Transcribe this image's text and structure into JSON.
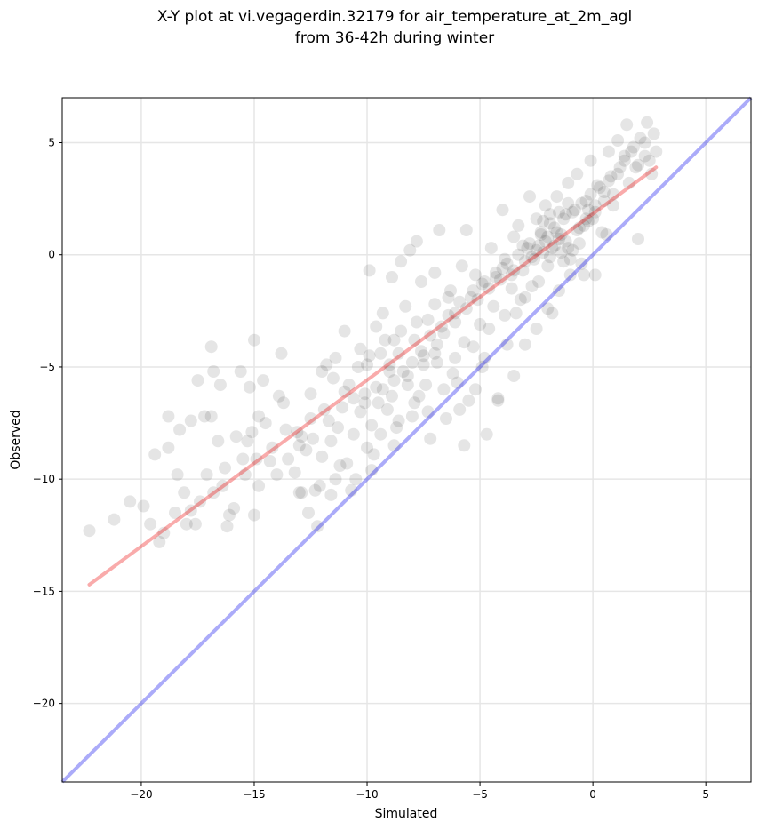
{
  "chart_data": {
    "type": "scatter",
    "title": "X-Y plot at vi.vegagerdin.32179 for air_temperature_at_2m_agl",
    "subtitle": "from 36-42h during winter",
    "xlabel": "Simulated",
    "ylabel": "Observed",
    "xlim": [
      -23.5,
      7.0
    ],
    "ylim": [
      -23.5,
      7.0
    ],
    "xticks": [
      -20,
      -15,
      -10,
      -5,
      0,
      5
    ],
    "yticks": [
      -20,
      -15,
      -10,
      -5,
      0,
      5
    ],
    "tick_labels": [
      "−20",
      "−15",
      "−10",
      "−5",
      "0",
      "5"
    ],
    "grid": true,
    "point_color": "#000000",
    "point_alpha": 0.1,
    "identity_line": {
      "color": "#0000ee",
      "alpha": 0.33,
      "from": [
        -23.5,
        -23.5
      ],
      "to": [
        7.0,
        7.0
      ]
    },
    "fit_line": {
      "color": "#ee0000",
      "alpha": 0.33,
      "from": [
        -22.3,
        -14.7
      ],
      "to": [
        2.8,
        3.9
      ]
    },
    "points": [
      [
        -22.3,
        -12.3
      ],
      [
        -21.2,
        -11.8
      ],
      [
        -20.5,
        -11.0
      ],
      [
        -19.9,
        -11.2
      ],
      [
        -19.6,
        -12.0
      ],
      [
        -19.2,
        -12.8
      ],
      [
        -19.0,
        -12.4
      ],
      [
        -18.8,
        -8.6
      ],
      [
        -19.4,
        -8.9
      ],
      [
        -18.8,
        -7.2
      ],
      [
        -18.3,
        -7.8
      ],
      [
        -18.4,
        -9.8
      ],
      [
        -18.1,
        -10.6
      ],
      [
        -17.8,
        -11.4
      ],
      [
        -18.0,
        -12.0
      ],
      [
        -17.6,
        -12.0
      ],
      [
        -17.8,
        -7.4
      ],
      [
        -17.5,
        -5.6
      ],
      [
        -17.2,
        -7.2
      ],
      [
        -16.9,
        -7.2
      ],
      [
        -17.1,
        -9.8
      ],
      [
        -16.8,
        -10.6
      ],
      [
        -16.9,
        -4.1
      ],
      [
        -16.8,
        -5.2
      ],
      [
        -16.5,
        -5.8
      ],
      [
        -16.6,
        -8.3
      ],
      [
        -16.3,
        -9.5
      ],
      [
        -16.1,
        -11.6
      ],
      [
        -16.2,
        -12.1
      ],
      [
        -15.9,
        -11.3
      ],
      [
        -15.8,
        -8.1
      ],
      [
        -15.6,
        -5.2
      ],
      [
        -15.5,
        -9.1
      ],
      [
        -15.3,
        -8.3
      ],
      [
        -15.2,
        -5.9
      ],
      [
        -15.0,
        -3.8
      ],
      [
        -15.1,
        -7.9
      ],
      [
        -14.9,
        -9.1
      ],
      [
        -14.8,
        -10.3
      ],
      [
        -15.0,
        -11.6
      ],
      [
        -14.8,
        -7.2
      ],
      [
        -14.6,
        -5.6
      ],
      [
        -14.5,
        -7.5
      ],
      [
        -14.2,
        -8.6
      ],
      [
        -14.0,
        -9.8
      ],
      [
        -13.9,
        -6.3
      ],
      [
        -13.8,
        -4.4
      ],
      [
        -13.7,
        -6.6
      ],
      [
        -13.5,
        -9.1
      ],
      [
        -13.2,
        -9.7
      ],
      [
        -13.1,
        -7.9
      ],
      [
        -13.0,
        -10.6
      ],
      [
        -12.9,
        -8.1
      ],
      [
        -12.7,
        -8.7
      ],
      [
        -12.5,
        -6.2
      ],
      [
        -12.5,
        -7.3
      ],
      [
        -12.3,
        -10.5
      ],
      [
        -12.2,
        -12.1
      ],
      [
        -12.0,
        -9.0
      ],
      [
        -11.9,
        -6.9
      ],
      [
        -11.8,
        -4.9
      ],
      [
        -11.6,
        -8.3
      ],
      [
        -11.5,
        -5.5
      ],
      [
        -11.3,
        -7.7
      ],
      [
        -11.2,
        -9.4
      ],
      [
        -11.0,
        -3.4
      ],
      [
        -11.0,
        -6.1
      ],
      [
        -10.8,
        -5.8
      ],
      [
        -10.6,
        -8.0
      ],
      [
        -10.5,
        -10.0
      ],
      [
        -10.3,
        -4.2
      ],
      [
        -10.1,
        -6.6
      ],
      [
        -10.0,
        -4.9
      ],
      [
        -9.9,
        -0.7
      ],
      [
        -9.8,
        -7.6
      ],
      [
        -9.7,
        -8.9
      ],
      [
        -9.6,
        -3.2
      ],
      [
        -9.4,
        -4.4
      ],
      [
        -9.3,
        -2.6
      ],
      [
        -9.1,
        -6.9
      ],
      [
        -9.0,
        -5.2
      ],
      [
        -8.9,
        -1.0
      ],
      [
        -8.8,
        -3.8
      ],
      [
        -8.6,
        -7.4
      ],
      [
        -8.5,
        -0.3
      ],
      [
        -8.3,
        -2.3
      ],
      [
        -8.2,
        -5.8
      ],
      [
        -8.1,
        0.2
      ],
      [
        -7.9,
        -3.8
      ],
      [
        -7.8,
        0.6
      ],
      [
        -7.7,
        -6.3
      ],
      [
        -7.6,
        -1.2
      ],
      [
        -7.5,
        -4.5
      ],
      [
        -7.3,
        -2.9
      ],
      [
        -7.2,
        -8.2
      ],
      [
        -7.0,
        -0.8
      ],
      [
        -6.9,
        -4.8
      ],
      [
        -6.8,
        1.1
      ],
      [
        -6.6,
        -3.5
      ],
      [
        -6.5,
        -7.3
      ],
      [
        -6.4,
        -1.9
      ],
      [
        -6.2,
        -5.3
      ],
      [
        -6.1,
        -2.6
      ],
      [
        -5.9,
        -6.9
      ],
      [
        -5.8,
        -0.5
      ],
      [
        -5.7,
        -3.9
      ],
      [
        -5.6,
        1.1
      ],
      [
        -5.4,
        -1.9
      ],
      [
        -5.3,
        -4.1
      ],
      [
        -5.2,
        -0.9
      ],
      [
        -5.0,
        -3.1
      ],
      [
        -4.9,
        -1.3
      ],
      [
        -4.8,
        -4.6
      ],
      [
        -4.7,
        -8.0
      ],
      [
        -4.5,
        0.3
      ],
      [
        -4.4,
        -2.3
      ],
      [
        -4.3,
        -1.0
      ],
      [
        -4.2,
        -6.4
      ],
      [
        -4.0,
        2.0
      ],
      [
        -3.9,
        -0.2
      ],
      [
        -3.8,
        -4.0
      ],
      [
        -3.6,
        -1.5
      ],
      [
        -3.5,
        0.8
      ],
      [
        -3.4,
        -2.6
      ],
      [
        -3.3,
        1.3
      ],
      [
        -3.1,
        -0.7
      ],
      [
        -3.0,
        -1.9
      ],
      [
        -2.9,
        0.3
      ],
      [
        -2.8,
        2.6
      ],
      [
        -2.6,
        -0.2
      ],
      [
        -2.5,
        1.6
      ],
      [
        -2.4,
        -1.2
      ],
      [
        -2.3,
        0.9
      ],
      [
        -2.1,
        2.2
      ],
      [
        -2.0,
        -0.5
      ],
      [
        -1.9,
        1.4
      ],
      [
        -1.8,
        -2.6
      ],
      [
        -1.7,
        0.4
      ],
      [
        -1.6,
        2.6
      ],
      [
        -1.4,
        0.9
      ],
      [
        -1.3,
        -0.3
      ],
      [
        -1.2,
        1.8
      ],
      [
        -1.1,
        3.2
      ],
      [
        -0.9,
        0.2
      ],
      [
        -0.8,
        2.0
      ],
      [
        -0.7,
        3.6
      ],
      [
        -0.6,
        1.2
      ],
      [
        -0.4,
        -0.9
      ],
      [
        -0.3,
        2.4
      ],
      [
        -0.2,
        1.5
      ],
      [
        -0.1,
        4.2
      ],
      [
        0.1,
        2.2
      ],
      [
        0.2,
        3.1
      ],
      [
        0.4,
        1.0
      ],
      [
        0.5,
        2.8
      ],
      [
        0.7,
        4.6
      ],
      [
        0.8,
        3.5
      ],
      [
        0.9,
        2.2
      ],
      [
        1.1,
        5.1
      ],
      [
        1.2,
        3.9
      ],
      [
        1.4,
        4.4
      ],
      [
        1.5,
        5.8
      ],
      [
        1.6,
        3.2
      ],
      [
        1.8,
        4.8
      ],
      [
        1.9,
        3.9
      ],
      [
        2.0,
        0.7
      ],
      [
        2.1,
        5.2
      ],
      [
        2.3,
        4.4
      ],
      [
        2.4,
        5.9
      ],
      [
        2.6,
        3.6
      ],
      [
        2.7,
        5.4
      ],
      [
        2.8,
        4.6
      ],
      [
        -9.3,
        -6.0
      ],
      [
        -8.8,
        -5.6
      ],
      [
        -8.4,
        -5.2
      ],
      [
        -8.0,
        -4.8
      ],
      [
        -7.6,
        -4.3
      ],
      [
        -8.6,
        -4.4
      ],
      [
        -9.0,
        -4.9
      ],
      [
        -9.6,
        -5.9
      ],
      [
        -10.1,
        -6.2
      ],
      [
        -10.6,
        -6.4
      ],
      [
        -7.2,
        -3.6
      ],
      [
        -7.0,
        -4.4
      ],
      [
        -6.7,
        -3.2
      ],
      [
        -6.4,
        -2.7
      ],
      [
        -6.1,
        -3.0
      ],
      [
        -5.9,
        -2.1
      ],
      [
        -5.6,
        -2.4
      ],
      [
        -5.3,
        -1.6
      ],
      [
        -5.1,
        -2.0
      ],
      [
        -4.8,
        -1.2
      ],
      [
        -4.6,
        -1.5
      ],
      [
        -4.3,
        -0.8
      ],
      [
        -4.1,
        -1.1
      ],
      [
        -3.8,
        -0.4
      ],
      [
        -3.5,
        -0.7
      ],
      [
        -3.3,
        0.0
      ],
      [
        -3.0,
        -0.3
      ],
      [
        -2.8,
        0.5
      ],
      [
        -2.5,
        0.2
      ],
      [
        -2.3,
        1.0
      ],
      [
        -2.1,
        0.6
      ],
      [
        -1.9,
        -0.1
      ],
      [
        -1.7,
        1.2
      ],
      [
        -1.5,
        0.7
      ],
      [
        -1.3,
        1.6
      ],
      [
        -1.1,
        0.3
      ],
      [
        -0.9,
        1.9
      ],
      [
        -0.7,
        1.1
      ],
      [
        -0.5,
        2.3
      ],
      [
        -0.3,
        1.6
      ],
      [
        -0.1,
        2.7
      ],
      [
        0.1,
        1.9
      ],
      [
        0.3,
        3.0
      ],
      [
        0.5,
        2.4
      ],
      [
        0.7,
        3.3
      ],
      [
        0.9,
        2.7
      ],
      [
        1.1,
        3.6
      ],
      [
        1.4,
        4.2
      ],
      [
        1.7,
        4.6
      ],
      [
        2.0,
        4.0
      ],
      [
        2.3,
        5.0
      ],
      [
        2.5,
        4.2
      ],
      [
        -2.4,
        0.4
      ],
      [
        -2.2,
        0.1
      ],
      [
        -2.0,
        0.8
      ],
      [
        -1.8,
        0.3
      ],
      [
        -1.6,
        1.0
      ],
      [
        -1.4,
        0.1
      ],
      [
        -1.2,
        0.6
      ],
      [
        -1.0,
        -0.2
      ],
      [
        -1.9,
        1.8
      ],
      [
        -2.2,
        1.5
      ],
      [
        -1.5,
        1.9
      ],
      [
        -1.1,
        2.3
      ],
      [
        -0.6,
        0.5
      ],
      [
        -0.4,
        1.3
      ],
      [
        -0.2,
        2.0
      ],
      [
        0.0,
        1.6
      ],
      [
        -2.7,
        -0.1
      ],
      [
        -3.1,
        0.4
      ],
      [
        -3.6,
        -0.9
      ],
      [
        -4.0,
        -0.6
      ],
      [
        -6.9,
        -4.0
      ],
      [
        -7.5,
        -4.9
      ],
      [
        -8.2,
        -5.4
      ],
      [
        -8.9,
        -6.3
      ],
      [
        -9.5,
        -6.6
      ],
      [
        -10.3,
        -7.0
      ],
      [
        -11.1,
        -6.8
      ],
      [
        -11.7,
        -7.4
      ],
      [
        -12.4,
        -8.2
      ],
      [
        -13.0,
        -8.5
      ],
      [
        -13.6,
        -7.8
      ],
      [
        -14.3,
        -9.2
      ],
      [
        -15.4,
        -9.8
      ],
      [
        -16.4,
        -10.3
      ],
      [
        -17.4,
        -11.0
      ],
      [
        -18.5,
        -11.5
      ],
      [
        -6.0,
        -5.7
      ],
      [
        -5.5,
        -6.5
      ],
      [
        -5.2,
        -6.0
      ],
      [
        -6.6,
        -6.0
      ],
      [
        -7.3,
        -7.0
      ],
      [
        -7.9,
        -6.6
      ],
      [
        -8.7,
        -7.7
      ],
      [
        -9.4,
        -8.0
      ],
      [
        -10.0,
        -8.6
      ],
      [
        -10.9,
        -9.3
      ],
      [
        -11.4,
        -10.0
      ],
      [
        -12.1,
        -10.3
      ],
      [
        -12.9,
        -10.6
      ],
      [
        -5.7,
        -8.5
      ],
      [
        -4.2,
        -6.5
      ],
      [
        -3.5,
        -5.4
      ],
      [
        -3.0,
        -4.0
      ],
      [
        -2.5,
        -3.3
      ],
      [
        -2.0,
        -2.4
      ],
      [
        -1.5,
        -1.6
      ],
      [
        -1.0,
        -0.9
      ],
      [
        -0.5,
        -0.4
      ],
      [
        0.1,
        -0.9
      ],
      [
        0.6,
        0.9
      ],
      [
        -4.6,
        -3.3
      ],
      [
        -3.9,
        -2.7
      ],
      [
        -3.2,
        -2.0
      ],
      [
        -2.7,
        -1.4
      ],
      [
        -6.3,
        -1.6
      ],
      [
        -7.0,
        -2.2
      ],
      [
        -7.8,
        -3.0
      ],
      [
        -8.5,
        -3.4
      ],
      [
        -9.2,
        -3.8
      ],
      [
        -9.9,
        -4.5
      ],
      [
        -10.4,
        -5.0
      ],
      [
        -11.4,
        -4.6
      ],
      [
        -12.0,
        -5.2
      ],
      [
        -4.9,
        -5.0
      ],
      [
        -6.1,
        -4.6
      ],
      [
        -7.4,
        -5.8
      ],
      [
        -8.0,
        -7.2
      ],
      [
        -8.8,
        -8.5
      ],
      [
        -9.8,
        -9.6
      ],
      [
        -10.7,
        -10.5
      ],
      [
        -11.6,
        -10.7
      ],
      [
        -12.6,
        -11.5
      ]
    ]
  }
}
